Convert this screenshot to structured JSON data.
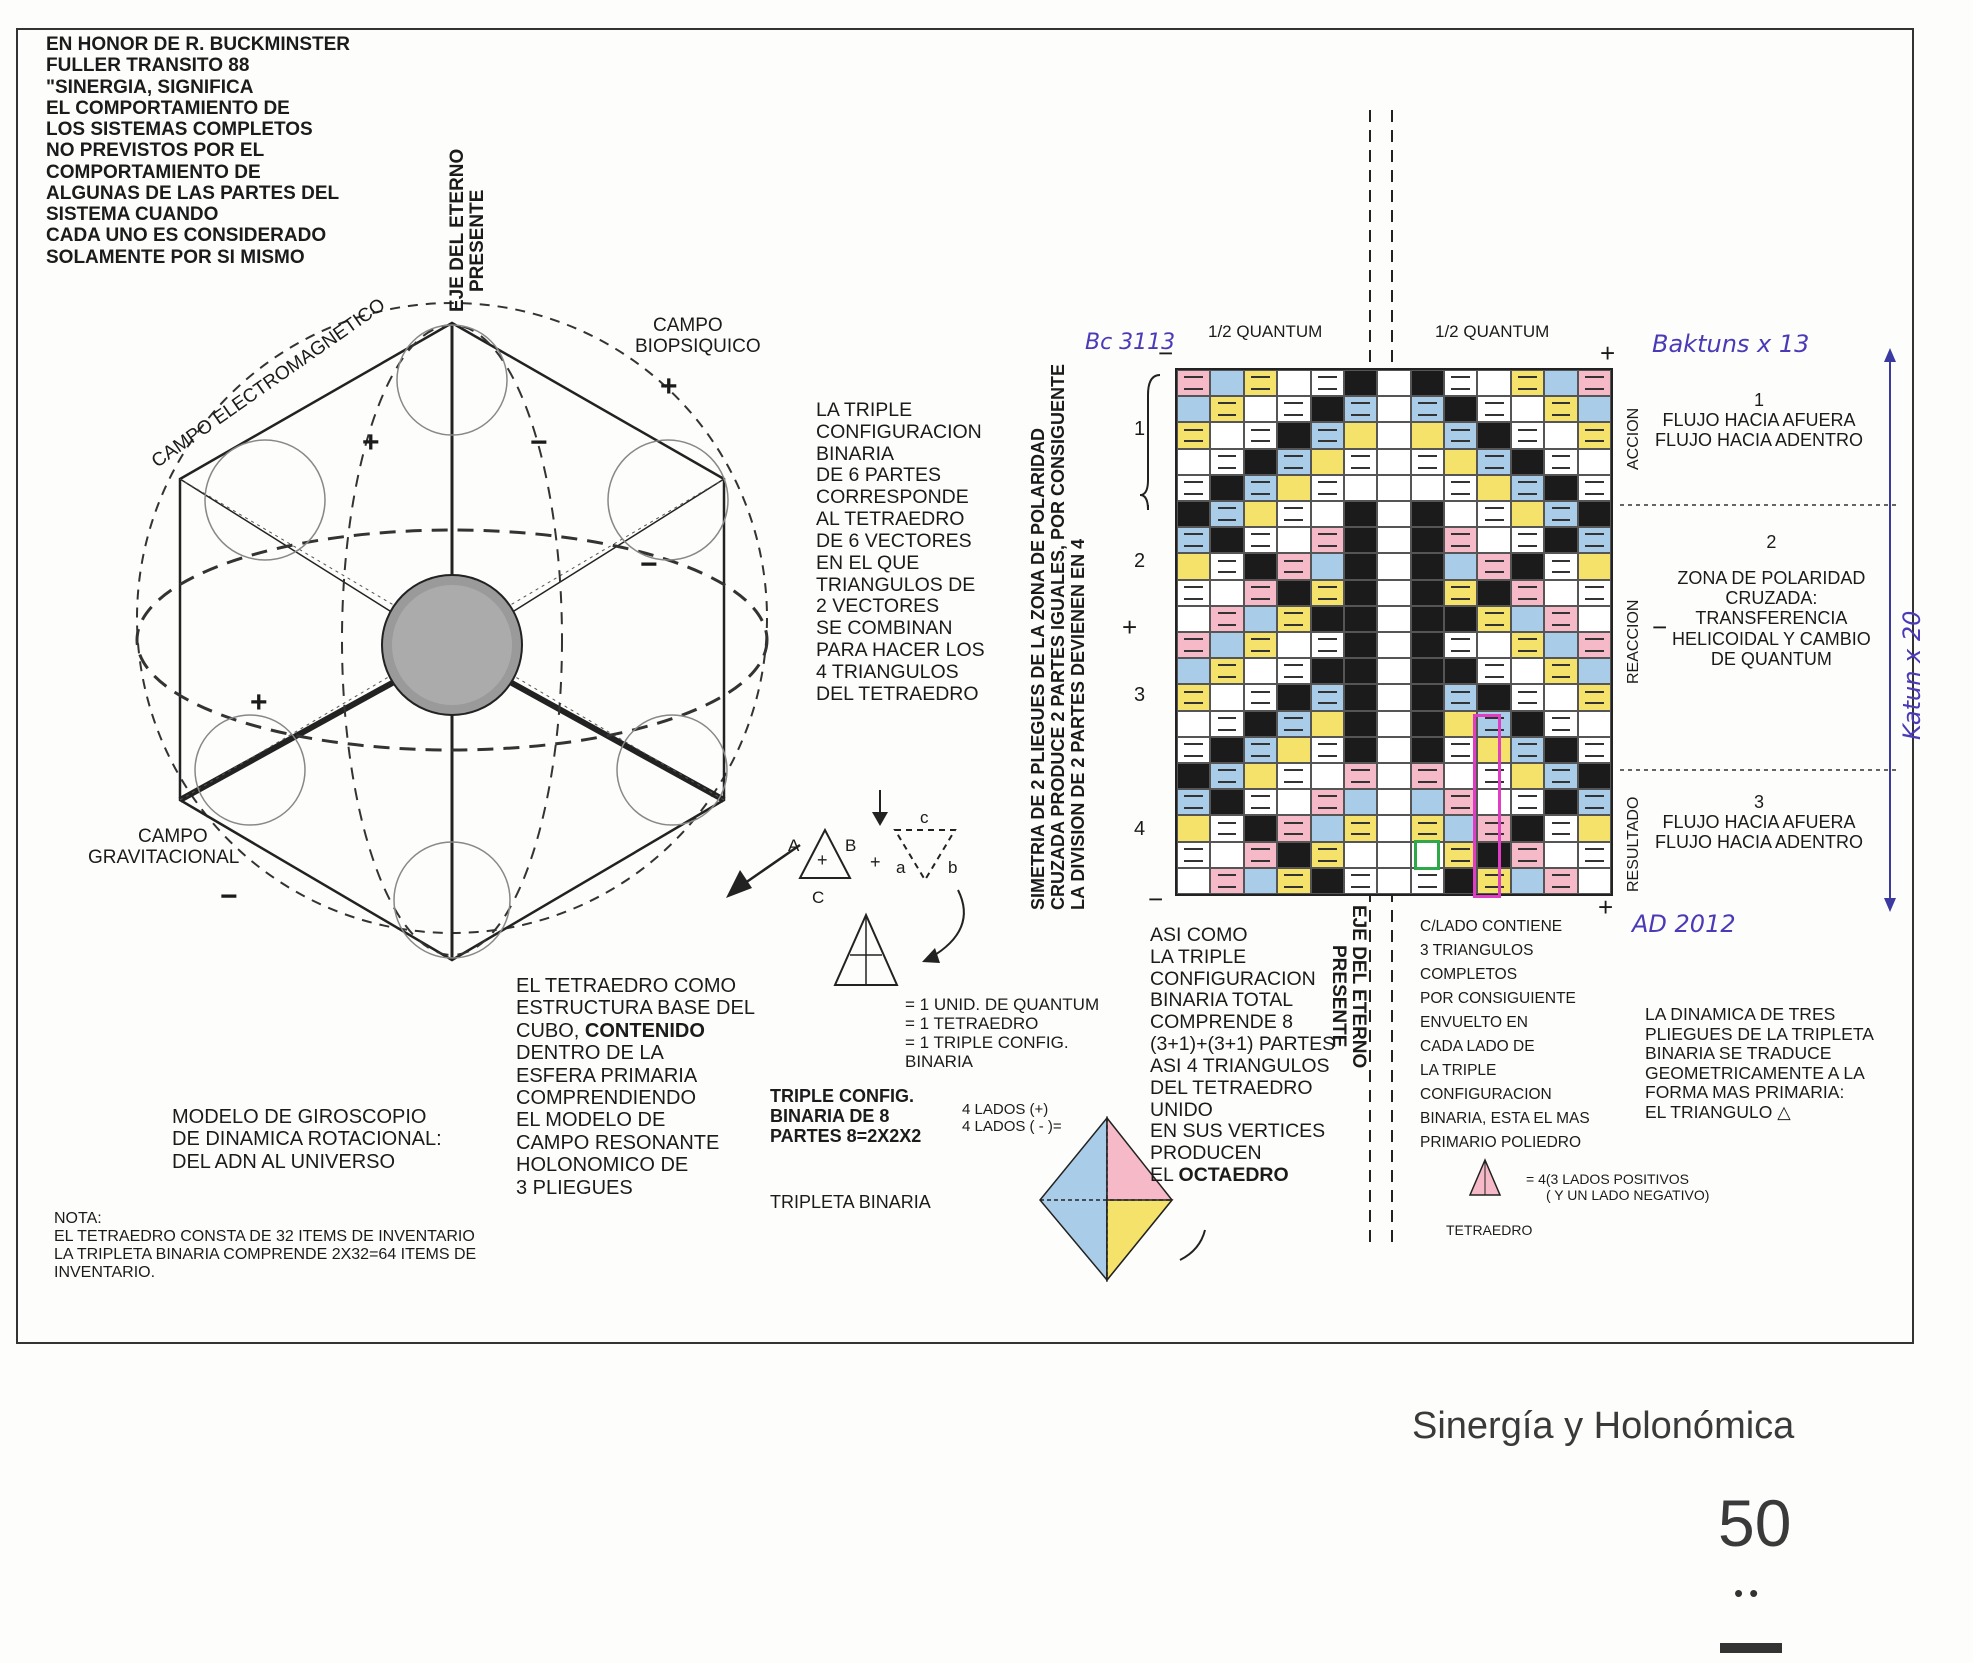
{
  "intro": {
    "lines": [
      "EN HONOR DE R. BUCKMINSTER",
      "FULLER TRANSITO 88",
      "\"SINERGIA, SIGNIFICA",
      "EL COMPORTAMIENTO DE",
      "LOS SISTEMAS COMPLETOS",
      "NO PREVISTOS POR EL",
      "COMPORTAMIENTO DE",
      "ALGUNAS DE LAS PARTES DEL",
      "SISTEMA CUANDO",
      "CADA UNO ES CONSIDERADO",
      "SOLAMENTE POR SI MISMO"
    ]
  },
  "left_diagram": {
    "axis_label": [
      "EJE DEL ETERNO",
      "PRESENTE"
    ],
    "campo_electromagnetico": "CAMPO ELECTROMAGNETICO",
    "campo_biopsiquico": [
      "CAMPO",
      "BIOPSIQUICO"
    ],
    "campo_gravitacional": [
      "CAMPO",
      "GRAVITACIONAL"
    ],
    "plus": "+",
    "minus": "−"
  },
  "middle_text": {
    "triple": [
      "LA TRIPLE",
      "CONFIGURACION",
      "BINARIA",
      "DE 6 PARTES",
      "CORRESPONDE",
      "AL TETRAEDRO",
      "DE 6 VECTORES",
      "EN EL QUE",
      "TRIANGULOS DE",
      "2 VECTORES",
      "SE COMBINAN",
      "PARA HACER LOS",
      "4 TRIANGULOS",
      "DEL TETRAEDRO"
    ],
    "tri_labels": {
      "A": "A",
      "B": "B",
      "C": "C",
      "a": "a",
      "b": "b",
      "c": "c",
      "plus_sign": "+"
    },
    "equalities": [
      "= 1 UNID. DE QUANTUM",
      "= 1 TETRAEDRO",
      "= 1 TRIPLE CONFIG.",
      "BINARIA"
    ],
    "tetra_base": [
      "EL TETRAEDRO COMO",
      "ESTRUCTURA BASE DEL",
      "CUBO, CONTENIDO",
      "DENTRO DE LA",
      "ESFERA PRIMARIA",
      "COMPRENDIENDO",
      "EL MODELO DE",
      "CAMPO RESONANTE",
      "HOLONOMICO DE",
      "3 PLIEGUES"
    ],
    "modelo": [
      "MODELO DE GIROSCOPIO",
      "DE DINAMICA ROTACIONAL:",
      "DEL ADN AL UNIVERSO"
    ],
    "triple8": [
      "TRIPLE CONFIG.",
      "BINARIA DE 8",
      "PARTES 8=2X2X2"
    ],
    "lados": [
      "4 LADOS (+)",
      "4 LADOS ( - )="
    ],
    "tripleta": "TRIPLETA BINARIA",
    "asi": [
      "ASI COMO",
      "LA TRIPLE",
      "CONFIGURACION",
      "BINARIA TOTAL",
      "COMPRENDE 8",
      "(3+1)+(3+1) PARTES",
      "ASI 4 TRIANGULOS",
      "DEL TETRAEDRO",
      "UNIDO",
      "EN SUS VERTICES",
      "PRODUCEN",
      "EL OCTAEDRO"
    ]
  },
  "nota": [
    "NOTA:",
    "EL TETRAEDRO CONSTA DE 32 ITEMS DE INVENTARIO",
    "LA TRIPLETA BINARIA COMPRENDE 2X32=64 ITEMS DE",
    "INVENTARIO."
  ],
  "grid_section": {
    "vertical_caption": [
      "SIMETRIA DE 2 PLIEGUES DE LA ZONA DE POLARIDAD",
      "CRUZADA PRODUCE 2 PARTES IGUALES, POR CONSIGUENTE",
      "LA DIVISION DE 2 PARTES DEVIENEN EN 4"
    ],
    "half_quantum_left": "1/2 QUANTUM",
    "half_quantum_right": "1/2 QUANTUM",
    "row_numbers": [
      "1",
      "2",
      "3",
      "4"
    ],
    "axis_label": [
      "EJE DEL ETERNO",
      "PRESENTE"
    ],
    "side_labels": [
      "ACCION",
      "REACCION",
      "RESULTADO"
    ],
    "zone1": {
      "num": "1",
      "lines": [
        "FLUJO HACIA AFUERA",
        "FLUJO HACIA ADENTRO"
      ]
    },
    "zone2": {
      "num": "2",
      "lines": [
        "ZONA DE POLARIDAD",
        "CRUZADA:",
        "TRANSFERENCIA",
        "HELICOIDAL Y CAMBIO",
        "DE QUANTUM"
      ]
    },
    "zone3": {
      "num": "3",
      "lines": [
        "FLUJO HACIA AFUERA",
        "FLUJO HACIA ADENTRO"
      ]
    },
    "handwritten": {
      "bc": "Bc 3113",
      "baktuns": "Baktuns x 13",
      "ad": "AD 2012",
      "katun": "Katun x 20"
    },
    "clado": [
      "C/LADO CONTIENE",
      "3 TRIANGULOS",
      "COMPLETOS",
      "POR CONSIGUIENTE",
      "ENVUELTO EN",
      "CADA LADO DE",
      "LA TRIPLE",
      "CONFIGURACION",
      "BINARIA, ESTA EL MAS",
      "PRIMARIO POLIEDRO"
    ],
    "dinamica": [
      "LA DINAMICA DE TRES",
      "PLIEGUES DE LA TRIPLETA",
      "BINARIA SE TRADUCE",
      "GEOMETRICAMENTE A LA",
      "FORMA MAS PRIMARIA:",
      "EL TRIANGULO △"
    ],
    "tetra_eq": [
      "= 4(3 LADOS POSITIVOS",
      "( Y UN LADO NEGATIVO)"
    ],
    "tetra_label": "TETRAEDRO"
  },
  "footer": {
    "title": "Sinergía y Holonómica",
    "page": "50",
    "dots": "••"
  },
  "grid_colors": {
    "pink": "#f6b9c8",
    "blue": "#a9cde9",
    "yellow": "#f5e26b",
    "black": "#1b1b1b",
    "green": "#2fa84a",
    "magenta": "#e03cc4"
  }
}
